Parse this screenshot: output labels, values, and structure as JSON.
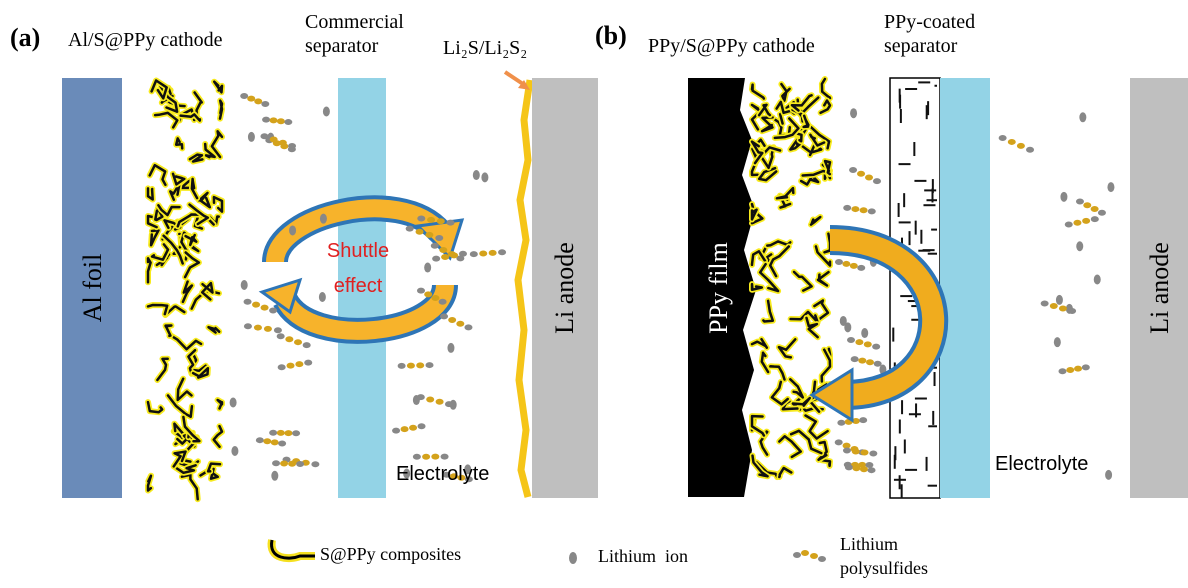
{
  "panel_a": {
    "tag": "(a)",
    "cathode_label": "Al/S@PPy cathode",
    "separator_label": [
      "Commercial",
      "separator"
    ],
    "deposit_label": "Li₂S/Li₂S₂",
    "current_collector": "Al foil",
    "arrow_label": [
      "Shuttle",
      "effect"
    ],
    "anode": "Li anode",
    "electrolyte": "Electrolyte"
  },
  "panel_b": {
    "tag": "(b)",
    "cathode_label": "PPy/S@PPy cathode",
    "separator_label": [
      "PPy-coated",
      "separator"
    ],
    "current_collector": "PPy film",
    "anode": "Li anode",
    "electrolyte": "Electrolyte"
  },
  "legend": {
    "composites": "S@PPy composites",
    "ion": "Lithium  ion",
    "polysulfides": [
      "Lithium",
      "polysulfides"
    ]
  }
}
